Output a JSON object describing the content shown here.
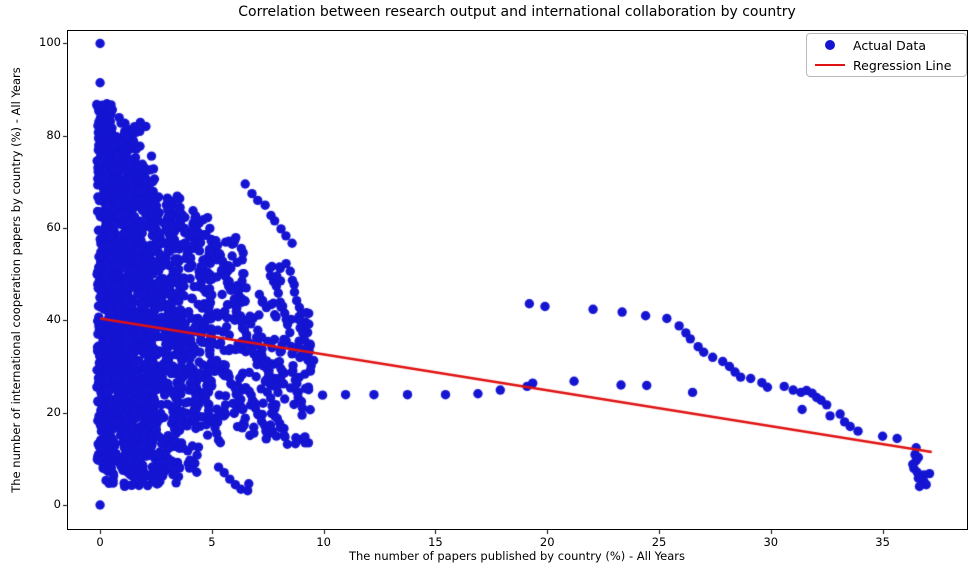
{
  "chart_data": {
    "type": "scatter",
    "title": "Correlation between research output and international collaboration by country",
    "xlabel": "The number of papers published by country (%) - All Years",
    "ylabel": "The number of international cooperation papers by country (%) - All Years",
    "xlim": [
      -1.48,
      38.82
    ],
    "ylim": [
      -5.42,
      102.92
    ],
    "xticks": [
      0,
      5,
      10,
      15,
      20,
      25,
      30,
      35
    ],
    "yticks": [
      0,
      20,
      40,
      60,
      80,
      100
    ],
    "grid": false,
    "legend": [
      {
        "label": "Actual Data",
        "type": "marker",
        "color": "#1414d2"
      },
      {
        "label": "Regression Line",
        "type": "line",
        "color": "#e01212"
      }
    ],
    "marker": {
      "color": "#1414d2",
      "radius": 4.7
    },
    "regression_line": {
      "color": "#e01212",
      "width": 2.6,
      "x1": 0,
      "y1": 40.4,
      "x2": 37.2,
      "y2": 11.5,
      "slope": -0.777,
      "intercept": 40.4
    },
    "points": [
      [
        0,
        100
      ],
      [
        0,
        91.5
      ],
      [
        0,
        0
      ],
      [
        1.8,
        82.9
      ],
      [
        2.05,
        82.0
      ],
      [
        1.62,
        80.9
      ],
      [
        1.0,
        79.3
      ],
      [
        1.3,
        79.0
      ],
      [
        2.3,
        75.6
      ],
      [
        8.75,
        33.9
      ],
      [
        9.15,
        33.7
      ],
      [
        9.95,
        23.8
      ],
      [
        10.98,
        23.9
      ],
      [
        12.25,
        23.9
      ],
      [
        13.75,
        23.9
      ],
      [
        15.45,
        23.9
      ],
      [
        16.9,
        24.1
      ],
      [
        17.9,
        24.9
      ],
      [
        19.1,
        25.7
      ],
      [
        19.35,
        26.4
      ],
      [
        21.2,
        26.8
      ],
      [
        23.3,
        26.0
      ],
      [
        24.45,
        25.9
      ],
      [
        26.5,
        24.4
      ],
      [
        19.2,
        43.6
      ],
      [
        19.9,
        43.0
      ],
      [
        22.05,
        42.4
      ],
      [
        23.35,
        41.8
      ],
      [
        24.4,
        41.0
      ],
      [
        25.35,
        40.4
      ],
      [
        25.9,
        38.8
      ],
      [
        26.2,
        37.3
      ],
      [
        26.4,
        36.0
      ],
      [
        26.75,
        34.3
      ],
      [
        27.0,
        33.1
      ],
      [
        27.4,
        32.0
      ],
      [
        27.85,
        31.1
      ],
      [
        28.15,
        30.0
      ],
      [
        28.4,
        28.8
      ],
      [
        28.65,
        27.7
      ],
      [
        29.1,
        27.4
      ],
      [
        29.6,
        26.5
      ],
      [
        29.85,
        25.5
      ],
      [
        30.6,
        25.7
      ],
      [
        31.0,
        24.9
      ],
      [
        31.35,
        24.4
      ],
      [
        31.6,
        24.8
      ],
      [
        31.85,
        24.2
      ],
      [
        32.05,
        23.3
      ],
      [
        32.25,
        22.7
      ],
      [
        32.5,
        21.7
      ],
      [
        31.4,
        20.7
      ],
      [
        32.65,
        19.3
      ],
      [
        33.1,
        19.7
      ],
      [
        33.3,
        18.0
      ],
      [
        33.55,
        17.0
      ],
      [
        33.9,
        16.0
      ],
      [
        35.0,
        14.9
      ],
      [
        35.65,
        14.4
      ],
      [
        36.5,
        12.4
      ],
      [
        36.45,
        10.9
      ],
      [
        36.6,
        10.3
      ],
      [
        36.5,
        9.6
      ],
      [
        36.35,
        8.8
      ],
      [
        36.4,
        7.9
      ],
      [
        36.55,
        7.1
      ],
      [
        36.85,
        6.5
      ],
      [
        37.1,
        6.8
      ],
      [
        36.6,
        5.8
      ],
      [
        36.85,
        5.1
      ],
      [
        36.95,
        4.4
      ],
      [
        36.65,
        4.0
      ],
      [
        5.3,
        8.2
      ],
      [
        5.55,
        7.0
      ],
      [
        5.8,
        5.6
      ],
      [
        6.05,
        4.4
      ],
      [
        6.3,
        3.4
      ],
      [
        6.6,
        3.1
      ],
      [
        6.65,
        4.6
      ],
      [
        4.0,
        8.0
      ],
      [
        3.4,
        4.8
      ]
    ],
    "dense_cloud": {
      "note": "approximation of several thousand unresolvable overlapping points near the origin",
      "seed": 42,
      "clusters": [
        [
          420,
          -0.15,
          0.55,
          7,
          87
        ],
        [
          600,
          0.25,
          1.5,
          9,
          81
        ],
        [
          520,
          1.1,
          2.45,
          10,
          74
        ],
        [
          300,
          2.3,
          3.7,
          13,
          67
        ],
        [
          190,
          3.5,
          5.0,
          15,
          63
        ],
        [
          120,
          4.8,
          6.5,
          16,
          58
        ],
        [
          80,
          6.3,
          8.1,
          14,
          52
        ],
        [
          55,
          7.8,
          9.6,
          13,
          43
        ],
        [
          70,
          0.2,
          2.8,
          4,
          11
        ],
        [
          45,
          2.6,
          4.4,
          6,
          14
        ],
        [
          26,
          0.0,
          1.9,
          76,
          84
        ]
      ],
      "chains": [
        [
          6.55,
          69.3,
          0.26,
          -1.55,
          9
        ],
        [
          8.35,
          52.0,
          0.1,
          -1.5,
          8
        ],
        [
          8.9,
          40.0,
          0.07,
          -1.5,
          8
        ],
        [
          5.15,
          57.5,
          0.1,
          -1.6,
          10
        ],
        [
          4.2,
          63.5,
          0.06,
          -1.7,
          9
        ],
        [
          3.0,
          66.0,
          0.05,
          -1.8,
          8
        ],
        [
          6.0,
          44.0,
          0.12,
          -1.5,
          10
        ],
        [
          7.0,
          36.0,
          0.1,
          -1.3,
          10
        ],
        [
          5.6,
          30.0,
          0.1,
          -1.2,
          10
        ],
        [
          6.6,
          25.0,
          0.1,
          -1.1,
          9
        ],
        [
          7.7,
          21.5,
          0.08,
          -1.0,
          9
        ],
        [
          4.7,
          24.0,
          0.07,
          -1.2,
          10
        ],
        [
          3.9,
          34.0,
          0.05,
          -1.4,
          10
        ],
        [
          2.7,
          44.0,
          0.04,
          -1.5,
          10
        ],
        [
          7.9,
          47.0,
          0.09,
          -1.35,
          8
        ],
        [
          8.6,
          30.0,
          0.06,
          -1.3,
          8
        ],
        [
          1.55,
          78.5,
          0.04,
          -1.5,
          6
        ]
      ]
    }
  }
}
